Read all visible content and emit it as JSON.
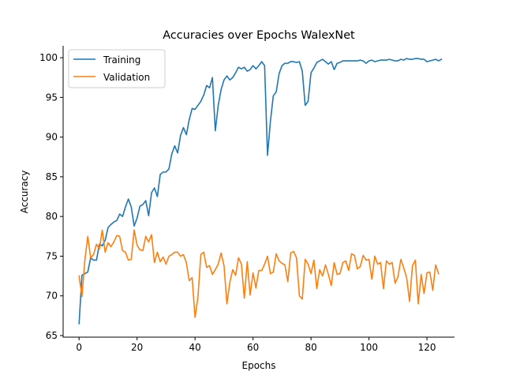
{
  "chart_data": {
    "type": "line",
    "title": "Accuracies over Epochs WalexNet",
    "xlabel": "Epochs",
    "ylabel": "Accuracy",
    "xlim": [
      -5.5,
      129.5
    ],
    "ylim": [
      64.8,
      101.5
    ],
    "xticks": [
      0,
      20,
      40,
      60,
      80,
      100,
      120
    ],
    "yticks": [
      65,
      70,
      75,
      80,
      85,
      90,
      95,
      100
    ],
    "grid": false,
    "legend_position": "top-left",
    "series": [
      {
        "name": "Training",
        "color": "#1f77b4",
        "values": [
          66.5,
          72.6,
          72.8,
          73.0,
          74.8,
          74.5,
          74.5,
          76.5,
          76.3,
          77.0,
          78.6,
          79.0,
          79.3,
          79.5,
          80.3,
          80.0,
          81.2,
          82.2,
          81.2,
          78.8,
          79.8,
          81.3,
          81.5,
          82.0,
          80.1,
          83.0,
          83.6,
          82.5,
          85.3,
          85.6,
          85.6,
          86.0,
          87.9,
          88.9,
          88.0,
          90.2,
          91.2,
          90.3,
          92.2,
          93.6,
          93.5,
          94.0,
          94.5,
          95.3,
          96.5,
          96.2,
          97.5,
          90.8,
          94.0,
          96.0,
          97.2,
          97.7,
          97.2,
          97.5,
          98.1,
          98.8,
          98.6,
          98.8,
          98.3,
          98.5,
          99.0,
          98.6,
          99.0,
          99.5,
          99.0,
          87.7,
          92.0,
          95.2,
          95.7,
          98.0,
          99.0,
          99.3,
          99.3,
          99.5,
          99.5,
          99.4,
          99.5,
          98.3,
          94.0,
          94.5,
          98.1,
          98.7,
          99.4,
          99.6,
          99.8,
          99.5,
          99.2,
          99.5,
          98.5,
          99.3,
          99.4,
          99.6,
          99.6,
          99.6,
          99.6,
          99.6,
          99.6,
          99.7,
          99.6,
          99.3,
          99.6,
          99.7,
          99.5,
          99.6,
          99.7,
          99.7,
          99.7,
          99.8,
          99.7,
          99.6,
          99.6,
          99.8,
          99.7,
          99.9,
          99.8,
          99.8,
          99.9,
          99.9,
          99.8,
          99.8,
          99.5,
          99.6,
          99.7,
          99.8,
          99.6,
          99.8
        ]
      },
      {
        "name": "Validation",
        "color": "#ff7f0e",
        "values": [
          72.5,
          69.9,
          74.5,
          77.5,
          74.8,
          75.2,
          76.5,
          75.9,
          78.3,
          75.5,
          76.7,
          76.2,
          76.8,
          77.6,
          77.5,
          75.7,
          75.5,
          74.5,
          74.6,
          78.3,
          76.4,
          75.8,
          75.7,
          77.5,
          76.8,
          77.7,
          74.2,
          75.5,
          74.3,
          74.9,
          74.0,
          75.0,
          75.2,
          75.5,
          75.5,
          75.0,
          75.2,
          74.2,
          71.9,
          72.3,
          67.3,
          69.8,
          75.2,
          75.5,
          73.6,
          73.8,
          72.7,
          73.3,
          74.0,
          75.4,
          73.8,
          69.0,
          71.7,
          73.3,
          72.6,
          74.8,
          74.0,
          69.7,
          74.3,
          70.1,
          72.9,
          71.0,
          73.2,
          73.2,
          74.0,
          75.0,
          72.8,
          73.0,
          75.3,
          74.4,
          74.1,
          73.9,
          71.8,
          75.4,
          75.6,
          74.8,
          70.0,
          69.6,
          74.6,
          74.0,
          72.8,
          74.5,
          70.9,
          73.3,
          72.5,
          73.9,
          72.7,
          71.3,
          74.2,
          72.7,
          72.8,
          74.2,
          74.4,
          73.2,
          75.3,
          75.1,
          73.4,
          73.7,
          75.1,
          74.5,
          74.6,
          72.1,
          75.0,
          74.0,
          74.2,
          70.9,
          74.4,
          74.0,
          74.2,
          71.6,
          72.4,
          74.6,
          73.5,
          72.3,
          69.3,
          73.8,
          74.5,
          69.0,
          72.7,
          70.3,
          72.9,
          73.0,
          70.7,
          73.9,
          72.8
        ]
      }
    ]
  }
}
